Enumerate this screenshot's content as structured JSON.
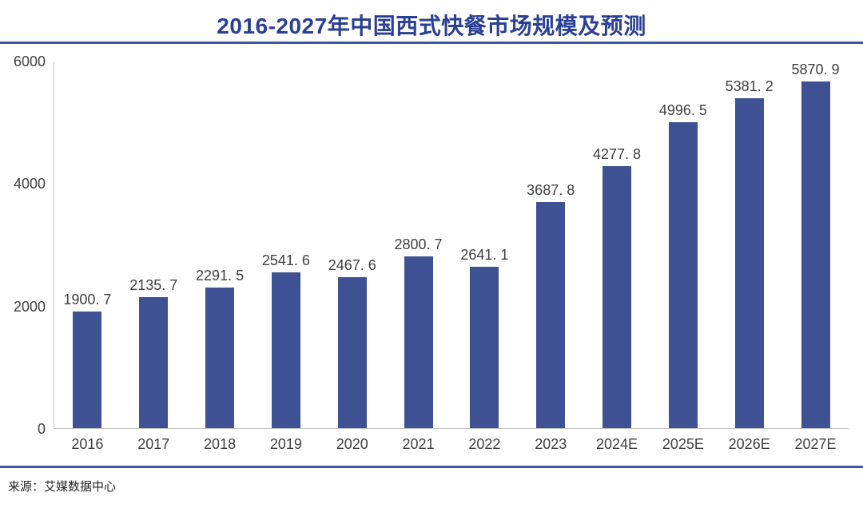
{
  "title": "2016-2027年中国西式快餐市场规模及预测",
  "source": "来源：艾媒数据中心",
  "colors": {
    "title": "#2B3F94",
    "divider": "#3C55A5",
    "bar": "#3E5192",
    "axis_line": "#C6C6C6",
    "label": "#3F3F3F"
  },
  "chart_data": {
    "type": "bar",
    "title": "2016-2027年中国西式快餐市场规模及预测",
    "categories": [
      "2016",
      "2017",
      "2018",
      "2019",
      "2020",
      "2021",
      "2022",
      "2023",
      "2024E",
      "2025E",
      "2026E",
      "2027E"
    ],
    "values": [
      1900.7,
      2135.7,
      2291.5,
      2541.6,
      2467.6,
      2800.7,
      2641.1,
      3687.8,
      4277.8,
      4996.5,
      5381.2,
      5870.9
    ],
    "value_labels": [
      "1900. 7",
      "2135. 7",
      "2291. 5",
      "2541. 6",
      "2467. 6",
      "2800. 7",
      "2641. 1",
      "3687. 8",
      "4277. 8",
      "4996. 5",
      "5381. 2",
      "5870. 9"
    ],
    "xlabel": "",
    "ylabel": "",
    "ylim": [
      0,
      6000
    ],
    "y_ticks": [
      0,
      2000,
      4000,
      6000
    ],
    "grid": false,
    "legend": null,
    "source": "来源：艾媒数据中心"
  }
}
